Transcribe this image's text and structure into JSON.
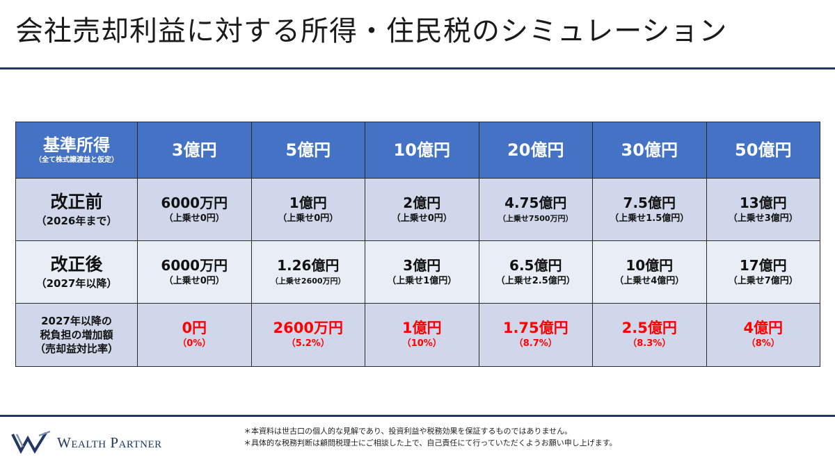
{
  "title": "会社売却利益に対する所得・住民税のシミュレーション",
  "table": {
    "header_label": "基準所得",
    "header_note": "（全て株式譲渡益と仮定）",
    "columns": [
      "3億円",
      "5億円",
      "10億円",
      "20億円",
      "30億円",
      "50億円"
    ],
    "rows": [
      {
        "label": "改正前",
        "sublabel": "（2026年まで）",
        "values": [
          {
            "main": "6000万円",
            "sub": "（上乗せ0円）"
          },
          {
            "main": "1億円",
            "sub": "（上乗せ0円）"
          },
          {
            "main": "2億円",
            "sub": "（上乗せ0円）"
          },
          {
            "main": "4.75億円",
            "sub": "（上乗せ7500万円）"
          },
          {
            "main": "7.5億円",
            "sub": "（上乗せ1.5億円）"
          },
          {
            "main": "13億円",
            "sub": "（上乗せ3億円）"
          }
        ]
      },
      {
        "label": "改正後",
        "sublabel": "（2027年以降）",
        "values": [
          {
            "main": "6000万円",
            "sub": "（上乗せ0円）"
          },
          {
            "main": "1.26億円",
            "sub": "（上乗せ2600万円）"
          },
          {
            "main": "3億円",
            "sub": "（上乗せ1億円）"
          },
          {
            "main": "6.5億円",
            "sub": "（上乗せ2.5億円）"
          },
          {
            "main": "10億円",
            "sub": "（上乗せ4億円）"
          },
          {
            "main": "17億円",
            "sub": "（上乗せ7億円）"
          }
        ]
      },
      {
        "label_lines": [
          "2027年以降の",
          "税負担の増加額",
          "（売却益対比率）"
        ],
        "values": [
          {
            "main": "0円",
            "sub": "（0%）"
          },
          {
            "main": "2600万円",
            "sub": "（5.2%）"
          },
          {
            "main": "1億円",
            "sub": "（10%）"
          },
          {
            "main": "1.75億円",
            "sub": "（8.7%）"
          },
          {
            "main": "2.5億円",
            "sub": "（8.3%）"
          },
          {
            "main": "4億円",
            "sub": "（8%）"
          }
        ]
      }
    ]
  },
  "footer": {
    "logo_text": "Wealth Partner",
    "disclaimers": [
      "＊本資料は世古口の個人的な見解であり、投資利益や税務効果を保証するものではありません。",
      "＊具体的な税務判断は顧問税理士にご相談した上で、自己責任にて行っていただくようお願い申し上げます。"
    ]
  },
  "colors": {
    "header_bg": "#4472c4",
    "row_dark": "#d0d7ea",
    "row_light": "#e9edf5",
    "accent_navy": "#1f3864",
    "increase_red": "#ff0000"
  }
}
